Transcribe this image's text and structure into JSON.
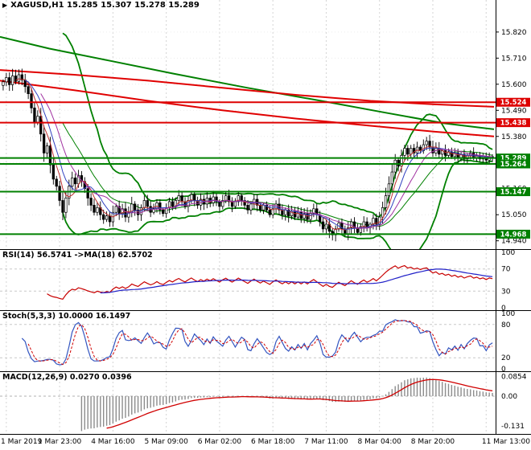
{
  "header": {
    "marker_icon": "▶",
    "title": "XAGUSD,H1 15.285 15.307 15.278 15.289"
  },
  "panels": {
    "rsi_label": "RSI(14) 56.5741 ->MA(18) 62.5702",
    "stoch_label": "Stoch(5,3,3) 10.0000 16.1497",
    "macd_label": "MACD(12,26,9) 0.0270 0.0396"
  },
  "colors": {
    "background": "#ffffff",
    "grid": "#d4d4d4",
    "candle_up": "#ffffff",
    "candle_down": "#000000",
    "candle_border": "#000000",
    "bands_green": "#008000",
    "ma_red": "#e00000",
    "level_red": "#dd0000",
    "level_green": "#008000",
    "rsi_main": "#c80000",
    "rsi_ma": "#2020c8",
    "stoch_main": "#3355c0",
    "stoch_signal": "#d00000",
    "macd_hist": "#8c8c8c",
    "macd_signal": "#d00000",
    "tag_text": "#ffffff"
  },
  "chart_data": [
    {
      "type": "candlestick",
      "title": "XAGUSD,H1",
      "ohlc_display": "15.285 15.307 15.278 15.289",
      "x_labels": [
        "1 Mar 2019",
        "1 Mar 23:00",
        "4 Mar 16:00",
        "5 Mar 09:00",
        "6 Mar 02:00",
        "6 Mar 18:00",
        "7 Mar 11:00",
        "8 Mar 04:00",
        "8 Mar 20:00",
        "11 Mar 13:00"
      ],
      "bars_per_label": 17,
      "first_label_bar": 1,
      "y_ticks": [
        15.82,
        15.71,
        15.6,
        15.49,
        15.38,
        15.27,
        15.16,
        15.05,
        14.94
      ],
      "ylim": [
        14.905,
        15.955
      ],
      "closes": [
        15.61,
        15.628,
        15.598,
        15.635,
        15.612,
        15.64,
        15.618,
        15.59,
        15.56,
        15.5,
        15.44,
        15.465,
        15.39,
        15.31,
        15.34,
        15.26,
        15.2,
        15.17,
        15.11,
        15.06,
        15.12,
        15.17,
        15.205,
        15.18,
        15.215,
        15.19,
        15.16,
        15.12,
        15.09,
        15.06,
        15.08,
        15.05,
        15.03,
        15.045,
        15.02,
        15.06,
        15.085,
        15.055,
        15.075,
        15.04,
        15.06,
        15.095,
        15.07,
        15.05,
        15.08,
        15.11,
        15.085,
        15.06,
        15.075,
        15.1,
        15.07,
        15.055,
        15.08,
        15.105,
        15.085,
        15.11,
        15.13,
        15.105,
        15.085,
        15.11,
        15.135,
        15.11,
        15.09,
        15.115,
        15.095,
        15.12,
        15.1,
        15.125,
        15.105,
        15.085,
        15.11,
        15.13,
        15.105,
        15.085,
        15.105,
        15.13,
        15.11,
        15.09,
        15.07,
        15.095,
        15.115,
        15.09,
        15.07,
        15.09,
        15.07,
        15.05,
        15.075,
        15.095,
        15.07,
        15.05,
        15.07,
        15.045,
        15.065,
        15.04,
        15.06,
        15.035,
        15.055,
        15.03,
        15.055,
        15.075,
        15.05,
        15.02,
        14.99,
        15.01,
        14.98,
        14.965,
        14.99,
        15.015,
        14.99,
        14.97,
        14.995,
        15.02,
        14.995,
        14.975,
        15.0,
        15.02,
        14.995,
        15.01,
        15.035,
        15.01,
        15.04,
        15.08,
        15.13,
        15.18,
        15.23,
        15.28,
        15.255,
        15.3,
        15.33,
        15.305,
        15.33,
        15.31,
        15.335,
        15.32,
        15.345,
        15.36,
        15.335,
        15.31,
        15.33,
        15.305,
        15.32,
        15.3,
        15.315,
        15.295,
        15.31,
        15.29,
        15.305,
        15.285,
        15.3,
        15.31,
        15.29,
        15.3,
        15.285,
        15.295,
        15.28,
        15.295,
        15.289
      ],
      "bollinger": {
        "period": 20,
        "deviation": 2
      },
      "levels": [
        {
          "price": 15.524,
          "color": "#dd0000"
        },
        {
          "price": 15.438,
          "color": "#dd0000"
        },
        {
          "price": 15.289,
          "color": "#008000"
        },
        {
          "price": 15.264,
          "color": "#008000"
        },
        {
          "price": 15.147,
          "color": "#008000"
        },
        {
          "price": 14.968,
          "color": "#008000"
        }
      ],
      "overlays": {
        "green_ma_long": [
          [
            0,
            15.8
          ],
          [
            0.1,
            15.75
          ],
          [
            0.22,
            15.7
          ],
          [
            0.35,
            15.645
          ],
          [
            0.5,
            15.585
          ],
          [
            0.65,
            15.53
          ],
          [
            0.78,
            15.48
          ],
          [
            0.9,
            15.435
          ],
          [
            1,
            15.41
          ]
        ],
        "red_ma_1": [
          [
            0,
            15.66
          ],
          [
            0.15,
            15.64
          ],
          [
            0.3,
            15.615
          ],
          [
            0.45,
            15.585
          ],
          [
            0.6,
            15.555
          ],
          [
            0.75,
            15.53
          ],
          [
            0.88,
            15.515
          ],
          [
            1,
            15.505
          ]
        ],
        "red_ma_2": [
          [
            0,
            15.615
          ],
          [
            0.15,
            15.575
          ],
          [
            0.3,
            15.53
          ],
          [
            0.45,
            15.49
          ],
          [
            0.6,
            15.455
          ],
          [
            0.75,
            15.425
          ],
          [
            0.88,
            15.4
          ],
          [
            1,
            15.38
          ]
        ]
      }
    },
    {
      "type": "line",
      "name": "RSI",
      "params": {
        "period": 14,
        "ma_period": 18
      },
      "value": 56.5741,
      "ma_value": 62.5702,
      "y_ticks": [
        100,
        70,
        30,
        0
      ],
      "levels": [
        70,
        30
      ],
      "ylim": [
        0,
        100
      ]
    },
    {
      "type": "line",
      "name": "Stochastic",
      "params": {
        "k": 5,
        "d": 3,
        "slowing": 3
      },
      "value": 10.0,
      "signal_value": 16.1497,
      "y_ticks": [
        100,
        80,
        20,
        0
      ],
      "levels": [
        80,
        20
      ],
      "ylim": [
        0,
        100
      ]
    },
    {
      "type": "bar",
      "name": "MACD",
      "params": {
        "fast": 12,
        "slow": 26,
        "signal": 9
      },
      "value": 0.027,
      "signal_value": 0.0396,
      "tick_values": [
        0.0854,
        0,
        -0.131
      ],
      "tick_labels": [
        "0.0854",
        "0.00",
        "-0.131"
      ],
      "ylim": [
        -0.155,
        0.095
      ]
    }
  ]
}
